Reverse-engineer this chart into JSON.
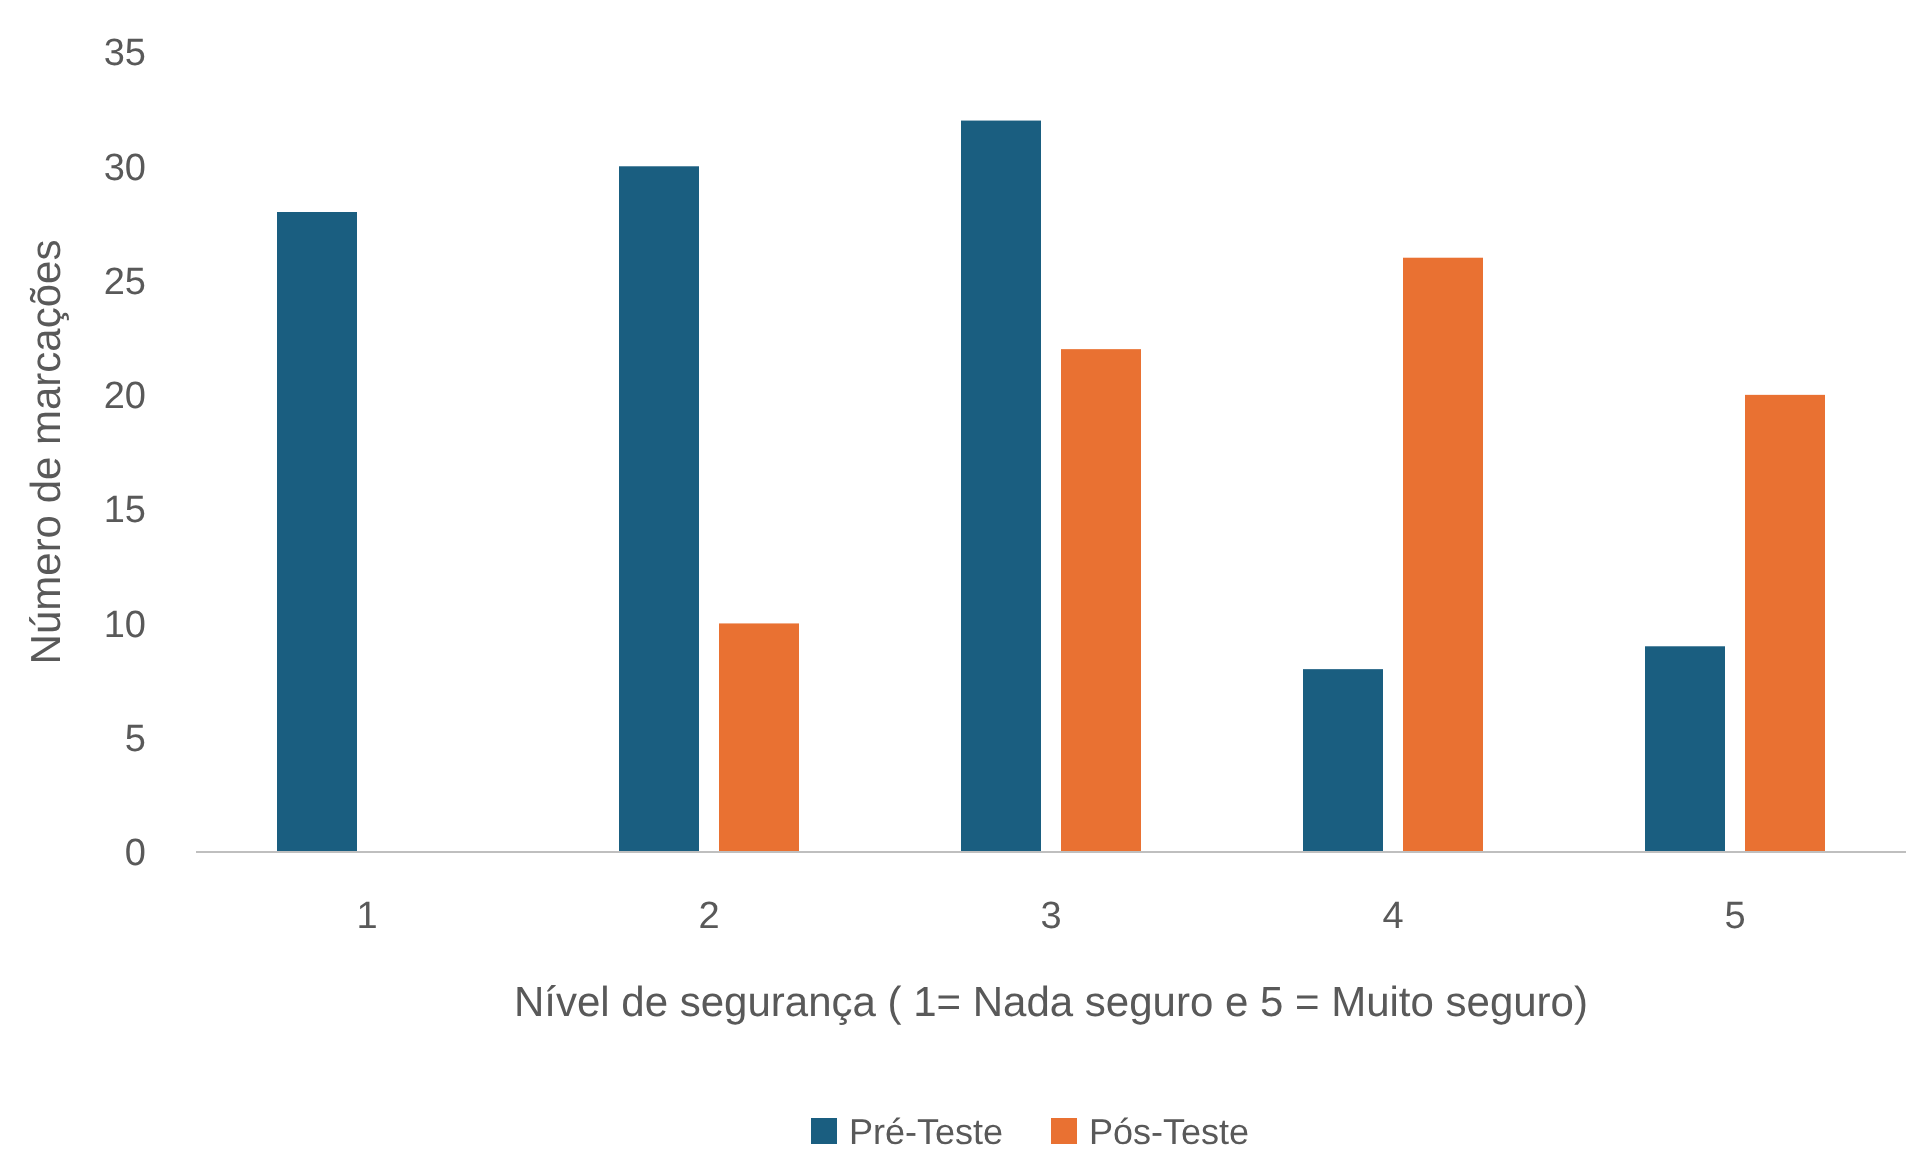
{
  "chart_data": {
    "type": "bar",
    "xlabel": "Nível de segurança ( 1= Nada seguro e 5 = Muito seguro)",
    "ylabel": "Número de marcações",
    "categories": [
      "1",
      "2",
      "3",
      "4",
      "5"
    ],
    "series": [
      {
        "name": "Pré-Teste",
        "color": "#1a5e80",
        "values": [
          28,
          30,
          32,
          8,
          9
        ]
      },
      {
        "name": "Pós-Teste",
        "color": "#e97132",
        "values": [
          0,
          10,
          22,
          26,
          20
        ]
      }
    ],
    "ylim": [
      0,
      35
    ],
    "yticks": [
      0,
      5,
      10,
      15,
      20,
      25,
      30,
      35
    ],
    "grid": false,
    "legend": "bottom"
  }
}
